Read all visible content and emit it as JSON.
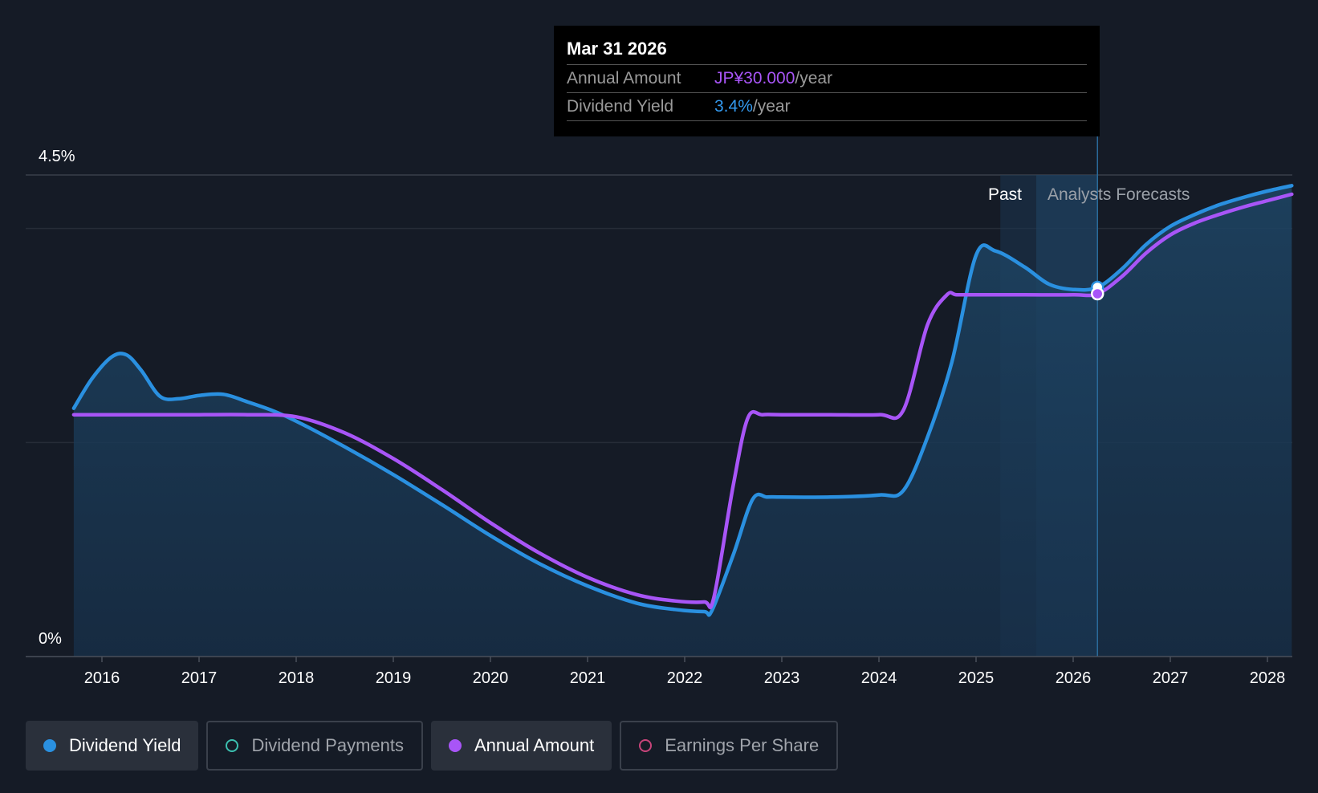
{
  "chart_data": {
    "type": "line",
    "ylabels": [
      "4.5%",
      "0%"
    ],
    "ylim": [
      0,
      4.5
    ],
    "xlim": [
      2015.45,
      2028.25
    ],
    "x_ticks": [
      "2016",
      "2017",
      "2018",
      "2019",
      "2020",
      "2021",
      "2022",
      "2023",
      "2024",
      "2025",
      "2026",
      "2027",
      "2028"
    ],
    "past_label": "Past",
    "forecast_label": "Analysts Forecasts",
    "series": [
      {
        "name": "Dividend Yield",
        "color": "#2a90e0",
        "unit": "%",
        "points": [
          [
            2015.71,
            2.32
          ],
          [
            2015.9,
            2.6
          ],
          [
            2016.1,
            2.8
          ],
          [
            2016.25,
            2.82
          ],
          [
            2016.4,
            2.68
          ],
          [
            2016.6,
            2.43
          ],
          [
            2016.8,
            2.41
          ],
          [
            2017.0,
            2.44
          ],
          [
            2017.25,
            2.45
          ],
          [
            2017.5,
            2.38
          ],
          [
            2017.75,
            2.3
          ],
          [
            2018.0,
            2.2
          ],
          [
            2018.5,
            1.96
          ],
          [
            2019.0,
            1.7
          ],
          [
            2019.5,
            1.42
          ],
          [
            2020.0,
            1.13
          ],
          [
            2020.5,
            0.87
          ],
          [
            2021.0,
            0.66
          ],
          [
            2021.5,
            0.5
          ],
          [
            2021.9,
            0.44
          ],
          [
            2022.2,
            0.42
          ],
          [
            2022.28,
            0.43
          ],
          [
            2022.5,
            0.95
          ],
          [
            2022.7,
            1.47
          ],
          [
            2022.85,
            1.49
          ],
          [
            2023.0,
            1.49
          ],
          [
            2023.5,
            1.49
          ],
          [
            2024.0,
            1.51
          ],
          [
            2024.25,
            1.55
          ],
          [
            2024.5,
            2.05
          ],
          [
            2024.75,
            2.75
          ],
          [
            2025.0,
            3.75
          ],
          [
            2025.2,
            3.79
          ],
          [
            2025.5,
            3.64
          ],
          [
            2025.75,
            3.48
          ],
          [
            2026.0,
            3.43
          ],
          [
            2026.25,
            3.45
          ],
          [
            2026.5,
            3.62
          ],
          [
            2026.75,
            3.85
          ],
          [
            2027.0,
            4.02
          ],
          [
            2027.25,
            4.13
          ],
          [
            2027.5,
            4.22
          ],
          [
            2027.75,
            4.29
          ],
          [
            2028.0,
            4.35
          ],
          [
            2028.25,
            4.4
          ]
        ]
      },
      {
        "name": "Annual Amount",
        "color": "#a855f7",
        "unit": "JP¥",
        "points": [
          [
            2015.71,
            2.26
          ],
          [
            2016.5,
            2.26
          ],
          [
            2017.0,
            2.26
          ],
          [
            2017.5,
            2.26
          ],
          [
            2018.0,
            2.24
          ],
          [
            2018.5,
            2.09
          ],
          [
            2019.0,
            1.85
          ],
          [
            2019.5,
            1.56
          ],
          [
            2020.0,
            1.25
          ],
          [
            2020.5,
            0.97
          ],
          [
            2021.0,
            0.74
          ],
          [
            2021.5,
            0.58
          ],
          [
            2021.9,
            0.52
          ],
          [
            2022.2,
            0.51
          ],
          [
            2022.3,
            0.55
          ],
          [
            2022.5,
            1.6
          ],
          [
            2022.65,
            2.23
          ],
          [
            2022.8,
            2.26
          ],
          [
            2023.0,
            2.26
          ],
          [
            2023.5,
            2.26
          ],
          [
            2024.0,
            2.26
          ],
          [
            2024.25,
            2.3
          ],
          [
            2024.5,
            3.1
          ],
          [
            2024.7,
            3.38
          ],
          [
            2024.8,
            3.38
          ],
          [
            2025.0,
            3.38
          ],
          [
            2025.5,
            3.38
          ],
          [
            2026.0,
            3.38
          ],
          [
            2026.25,
            3.39
          ],
          [
            2026.5,
            3.55
          ],
          [
            2026.75,
            3.77
          ],
          [
            2027.0,
            3.94
          ],
          [
            2027.25,
            4.05
          ],
          [
            2027.5,
            4.13
          ],
          [
            2027.75,
            4.2
          ],
          [
            2028.0,
            4.26
          ],
          [
            2028.25,
            4.32
          ]
        ]
      }
    ],
    "highlight_x": 2026.25
  },
  "tooltip": {
    "date": "Mar 31 2026",
    "rows": [
      {
        "label": "Annual Amount",
        "value": "JP¥30.000",
        "unit": "/year"
      },
      {
        "label": "Dividend Yield",
        "value": "3.4%",
        "unit": "/year"
      }
    ]
  },
  "legend": [
    {
      "label": "Dividend Yield",
      "color": "#2a90e0",
      "active": true,
      "filled": true
    },
    {
      "label": "Dividend Payments",
      "color": "#3cc0b0",
      "active": false,
      "filled": false
    },
    {
      "label": "Annual Amount",
      "color": "#a855f7",
      "active": true,
      "filled": true
    },
    {
      "label": "Earnings Per Share",
      "color": "#c8447a",
      "active": false,
      "filled": false
    }
  ]
}
